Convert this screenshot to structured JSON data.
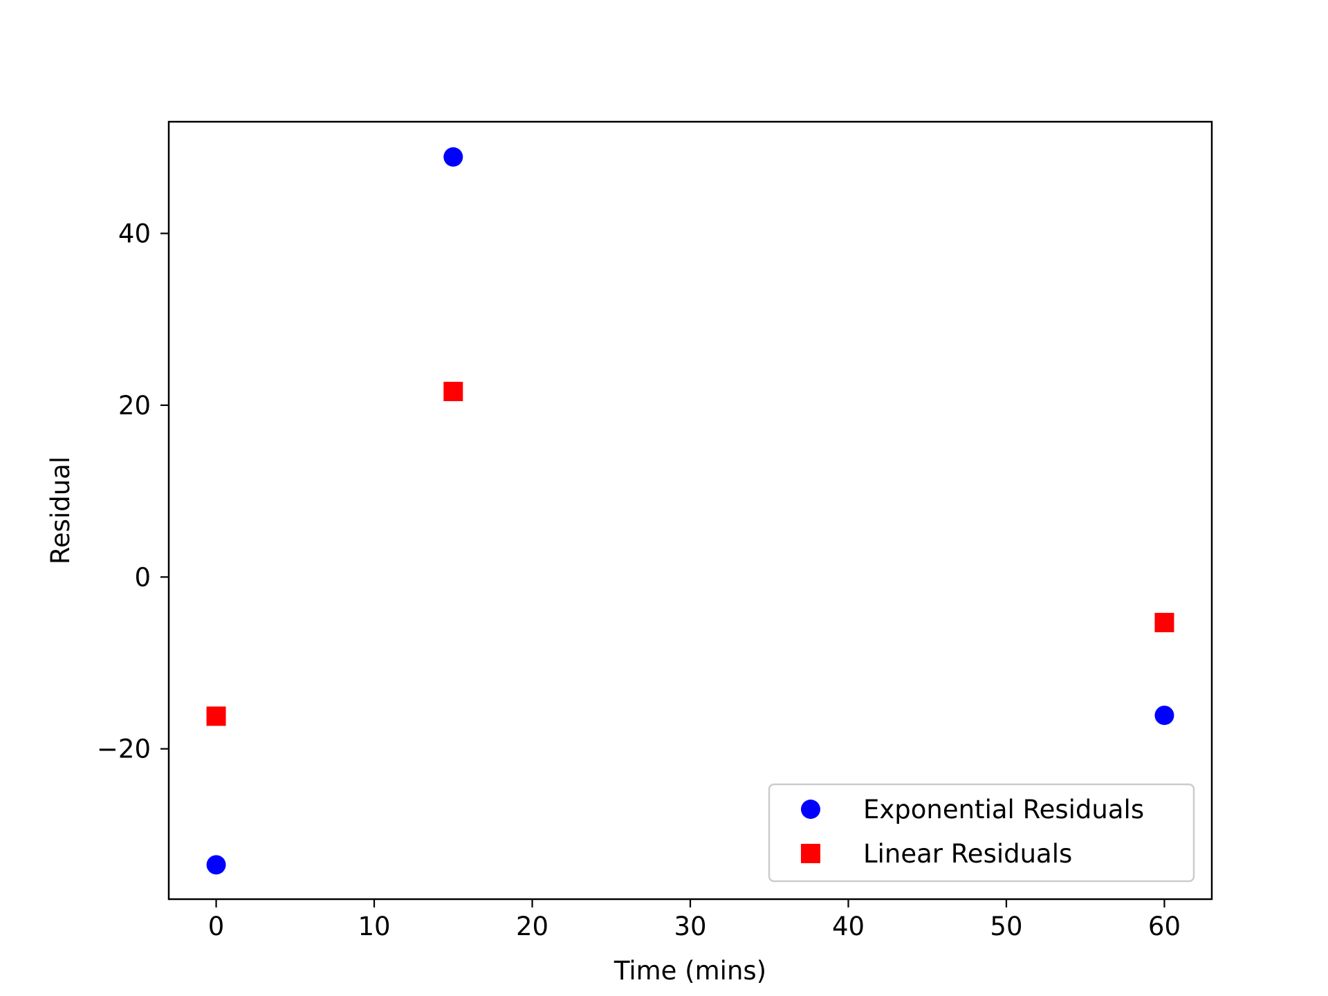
{
  "chart_data": {
    "type": "scatter",
    "title": "",
    "xlabel": "Time (mins)",
    "ylabel": "Residual",
    "xlim": [
      -3,
      63
    ],
    "ylim": [
      -37.5,
      53
    ],
    "xticks": [
      0,
      10,
      20,
      30,
      40,
      50,
      60
    ],
    "yticks": [
      -20,
      0,
      20,
      40
    ],
    "ytick_labels": [
      "−20",
      "0",
      "20",
      "40"
    ],
    "grid": false,
    "legend_position": "lower-right",
    "series": [
      {
        "name": "Exponential Residuals",
        "marker": "circle",
        "color": "#0000ff",
        "x": [
          0,
          15,
          60
        ],
        "y": [
          -33.5,
          48.9,
          -16.1
        ]
      },
      {
        "name": "Linear Residuals",
        "marker": "square",
        "color": "#ff0000",
        "x": [
          0,
          15,
          60
        ],
        "y": [
          -16.2,
          21.6,
          -5.3
        ]
      }
    ]
  }
}
